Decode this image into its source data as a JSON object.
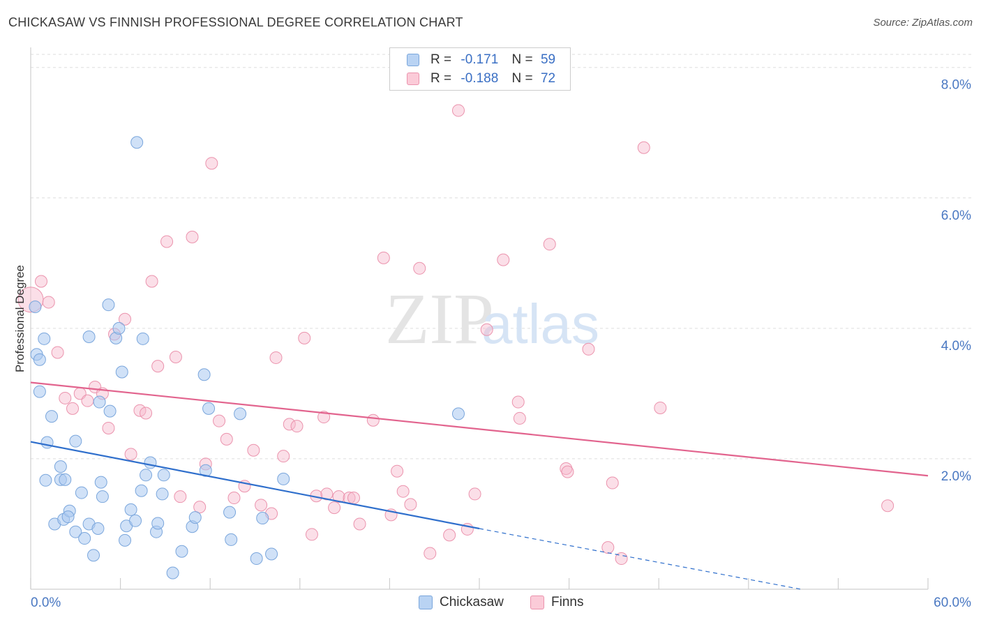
{
  "title": "CHICKASAW VS FINNISH PROFESSIONAL DEGREE CORRELATION CHART",
  "source": "Source: ZipAtlas.com",
  "legend": {
    "r_label": "R =",
    "n_label": "N =",
    "rows": [
      {
        "r": "-0.171",
        "n": "59"
      },
      {
        "r": "-0.188",
        "n": "72"
      }
    ]
  },
  "bottom_legend": [
    "Chickasaw",
    "Finns"
  ],
  "colors": {
    "chickasaw_fill": "#a9c8f0",
    "chickasaw_stroke": "#7aa6dc",
    "chickasaw_line": "#2f6fcc",
    "finns_fill": "#f7b9cb",
    "finns_stroke": "#eb93ad",
    "finns_line": "#e2648e",
    "tick_label": "#4a78c2",
    "grid": "#dddddd"
  },
  "watermark": {
    "zip": "ZIP",
    "atlas": "atlas"
  },
  "chart_data": {
    "type": "scatter",
    "title": "CHICKASAW VS FINNISH PROFESSIONAL DEGREE CORRELATION CHART",
    "xlabel": "",
    "ylabel": "Professional Degree",
    "xlim": [
      0,
      60
    ],
    "ylim": [
      0,
      8.2
    ],
    "x_tick_labels": [
      "0.0%",
      "60.0%"
    ],
    "y_ticks": [
      2,
      4,
      6,
      8
    ],
    "y_tick_labels": [
      "2.0%",
      "4.0%",
      "6.0%",
      "8.0%"
    ],
    "grid": true,
    "series": [
      {
        "name": "Chickasaw",
        "R": -0.171,
        "N": 59,
        "trend": {
          "x0": 0,
          "y0": 2.26,
          "x1": 30,
          "y1": 0.93,
          "dashed_to_x": 51.5,
          "dashed_to_y": 0
        },
        "points": [
          [
            0.3,
            4.33
          ],
          [
            0.4,
            3.6
          ],
          [
            0.6,
            3.52
          ],
          [
            0.6,
            3.03
          ],
          [
            0.9,
            3.84
          ],
          [
            1.0,
            1.67
          ],
          [
            1.4,
            2.65
          ],
          [
            1.1,
            2.25
          ],
          [
            1.6,
            1.0
          ],
          [
            2.0,
            1.68
          ],
          [
            2.0,
            1.88
          ],
          [
            2.3,
            1.68
          ],
          [
            2.2,
            1.07
          ],
          [
            2.6,
            1.2
          ],
          [
            2.5,
            1.11
          ],
          [
            3.0,
            2.27
          ],
          [
            3.0,
            0.88
          ],
          [
            3.4,
            1.48
          ],
          [
            3.6,
            0.78
          ],
          [
            3.9,
            3.87
          ],
          [
            3.9,
            1.0
          ],
          [
            4.2,
            0.52
          ],
          [
            4.5,
            0.93
          ],
          [
            4.6,
            2.87
          ],
          [
            4.7,
            1.64
          ],
          [
            4.8,
            1.42
          ],
          [
            5.2,
            4.36
          ],
          [
            5.3,
            2.73
          ],
          [
            5.7,
            3.85
          ],
          [
            5.9,
            4.0
          ],
          [
            6.1,
            3.33
          ],
          [
            6.3,
            0.75
          ],
          [
            6.4,
            0.97
          ],
          [
            6.7,
            1.22
          ],
          [
            7.0,
            1.05
          ],
          [
            7.1,
            6.85
          ],
          [
            7.4,
            1.51
          ],
          [
            7.5,
            3.84
          ],
          [
            7.7,
            1.75
          ],
          [
            8.0,
            1.94
          ],
          [
            8.4,
            0.88
          ],
          [
            8.5,
            1.01
          ],
          [
            8.8,
            1.46
          ],
          [
            8.9,
            1.75
          ],
          [
            9.5,
            0.25
          ],
          [
            10.1,
            0.58
          ],
          [
            10.8,
            0.96
          ],
          [
            11.0,
            1.1
          ],
          [
            11.6,
            3.29
          ],
          [
            11.7,
            1.82
          ],
          [
            11.9,
            2.77
          ],
          [
            13.3,
            1.18
          ],
          [
            13.4,
            0.76
          ],
          [
            14.0,
            2.69
          ],
          [
            15.1,
            0.47
          ],
          [
            15.5,
            1.09
          ],
          [
            16.1,
            0.54
          ],
          [
            16.9,
            1.69
          ],
          [
            28.6,
            2.69
          ]
        ]
      },
      {
        "name": "Finns",
        "R": -0.188,
        "N": 72,
        "trend": {
          "x0": 0,
          "y0": 3.17,
          "x1": 60,
          "y1": 1.74
        },
        "points": [
          [
            0.0,
            4.44
          ],
          [
            0.7,
            4.72
          ],
          [
            1.2,
            4.4
          ],
          [
            1.8,
            3.63
          ],
          [
            2.3,
            2.93
          ],
          [
            2.8,
            2.77
          ],
          [
            3.3,
            3.0
          ],
          [
            3.8,
            2.89
          ],
          [
            4.3,
            3.1
          ],
          [
            4.8,
            3.0
          ],
          [
            5.2,
            2.47
          ],
          [
            5.6,
            3.91
          ],
          [
            6.3,
            4.14
          ],
          [
            6.7,
            2.07
          ],
          [
            7.3,
            2.74
          ],
          [
            7.7,
            2.7
          ],
          [
            8.1,
            4.72
          ],
          [
            8.5,
            3.42
          ],
          [
            9.1,
            5.33
          ],
          [
            9.7,
            3.56
          ],
          [
            10.0,
            1.42
          ],
          [
            10.8,
            5.4
          ],
          [
            11.3,
            1.26
          ],
          [
            11.7,
            1.92
          ],
          [
            12.1,
            6.53
          ],
          [
            12.6,
            2.58
          ],
          [
            13.1,
            2.3
          ],
          [
            13.6,
            1.4
          ],
          [
            14.3,
            1.58
          ],
          [
            14.9,
            2.13
          ],
          [
            15.4,
            1.29
          ],
          [
            16.1,
            1.16
          ],
          [
            16.4,
            3.55
          ],
          [
            16.9,
            2.04
          ],
          [
            17.3,
            2.53
          ],
          [
            17.8,
            2.5
          ],
          [
            18.3,
            3.85
          ],
          [
            18.8,
            0.84
          ],
          [
            19.1,
            1.43
          ],
          [
            19.6,
            2.64
          ],
          [
            19.8,
            1.46
          ],
          [
            20.3,
            1.25
          ],
          [
            20.6,
            1.42
          ],
          [
            21.3,
            1.4
          ],
          [
            21.6,
            1.4
          ],
          [
            22.0,
            1.0
          ],
          [
            22.9,
            2.59
          ],
          [
            23.6,
            5.08
          ],
          [
            24.1,
            1.14
          ],
          [
            24.5,
            1.81
          ],
          [
            24.9,
            1.5
          ],
          [
            25.4,
            1.3
          ],
          [
            26.0,
            4.92
          ],
          [
            26.7,
            0.55
          ],
          [
            28.0,
            0.83
          ],
          [
            28.6,
            7.34
          ],
          [
            29.2,
            0.92
          ],
          [
            29.7,
            1.46
          ],
          [
            30.5,
            3.98
          ],
          [
            31.6,
            5.05
          ],
          [
            32.6,
            2.87
          ],
          [
            32.7,
            2.62
          ],
          [
            34.7,
            5.29
          ],
          [
            35.8,
            1.85
          ],
          [
            35.9,
            1.8
          ],
          [
            37.3,
            3.68
          ],
          [
            38.6,
            0.64
          ],
          [
            38.9,
            1.63
          ],
          [
            39.5,
            0.47
          ],
          [
            41.0,
            6.77
          ],
          [
            42.1,
            2.78
          ],
          [
            57.3,
            1.28
          ]
        ]
      }
    ]
  }
}
